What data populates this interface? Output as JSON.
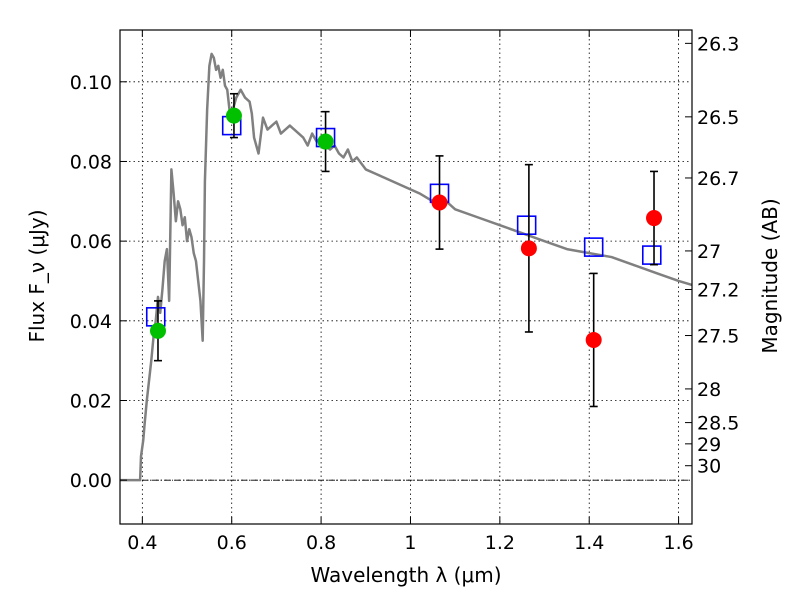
{
  "chart_data": {
    "type": "scatter",
    "xlabel": "Wavelength λ (μm)",
    "ylabel": "Flux F_ν (μJy)",
    "ylabel_right": "Magnitude (AB)",
    "xlim": [
      0.35,
      1.63
    ],
    "ylim": [
      -0.011,
      0.113
    ],
    "x_ticks": [
      0.4,
      0.6,
      0.8,
      1.0,
      1.2,
      1.4,
      1.6
    ],
    "x_tick_labels": [
      "0.4",
      "0.6",
      "0.8",
      "1",
      "1.2",
      "1.4",
      "1.6"
    ],
    "y_ticks": [
      0.0,
      0.02,
      0.04,
      0.06,
      0.08,
      0.1
    ],
    "y_tick_labels": [
      "0.00",
      "0.02",
      "0.04",
      "0.06",
      "0.08",
      "0.10"
    ],
    "right_ticks": [
      26.3,
      26.5,
      26.7,
      27,
      27.2,
      27.5,
      28,
      28.5,
      29,
      30
    ],
    "right_tick_labels": [
      "26.3",
      "26.5",
      "26.7",
      "27",
      "27.2",
      "27.5",
      "28",
      "28.5",
      "29",
      "30"
    ],
    "grid": true,
    "series": [
      {
        "kind": "line",
        "color": "#808080",
        "x": [
          0.35,
          0.395,
          0.397,
          0.402,
          0.405,
          0.41,
          0.415,
          0.42,
          0.425,
          0.43,
          0.435,
          0.44,
          0.445,
          0.45,
          0.455,
          0.46,
          0.465,
          0.47,
          0.475,
          0.48,
          0.485,
          0.49,
          0.495,
          0.5,
          0.505,
          0.51,
          0.515,
          0.52,
          0.525,
          0.53,
          0.535,
          0.538,
          0.54,
          0.545,
          0.55,
          0.555,
          0.56,
          0.565,
          0.57,
          0.575,
          0.58,
          0.585,
          0.59,
          0.595,
          0.6,
          0.61,
          0.62,
          0.63,
          0.64,
          0.645,
          0.65,
          0.66,
          0.67,
          0.68,
          0.69,
          0.7,
          0.71,
          0.72,
          0.73,
          0.74,
          0.75,
          0.76,
          0.77,
          0.78,
          0.79,
          0.8,
          0.81,
          0.82,
          0.83,
          0.84,
          0.85,
          0.86,
          0.87,
          0.88,
          0.9,
          0.92,
          0.94,
          0.96,
          0.98,
          1.0,
          1.02,
          1.05,
          1.08,
          1.1,
          1.15,
          1.2,
          1.25,
          1.3,
          1.35,
          1.4,
          1.45,
          1.5,
          1.55,
          1.6,
          1.63
        ],
        "y": [
          0.0,
          0.0,
          0.006,
          0.01,
          0.014,
          0.02,
          0.025,
          0.03,
          0.036,
          0.04,
          0.046,
          0.042,
          0.048,
          0.055,
          0.058,
          0.045,
          0.078,
          0.072,
          0.065,
          0.07,
          0.068,
          0.064,
          0.066,
          0.06,
          0.063,
          0.061,
          0.057,
          0.055,
          0.05,
          0.045,
          0.035,
          0.055,
          0.075,
          0.093,
          0.104,
          0.107,
          0.106,
          0.103,
          0.104,
          0.101,
          0.103,
          0.099,
          0.098,
          0.093,
          0.092,
          0.096,
          0.098,
          0.096,
          0.095,
          0.092,
          0.086,
          0.082,
          0.091,
          0.088,
          0.089,
          0.09,
          0.087,
          0.088,
          0.089,
          0.088,
          0.087,
          0.086,
          0.084,
          0.087,
          0.085,
          0.086,
          0.084,
          0.083,
          0.084,
          0.082,
          0.081,
          0.083,
          0.08,
          0.081,
          0.078,
          0.077,
          0.076,
          0.075,
          0.074,
          0.073,
          0.072,
          0.07,
          0.07,
          0.068,
          0.066,
          0.064,
          0.062,
          0.06,
          0.058,
          0.057,
          0.056,
          0.054,
          0.052,
          0.05,
          0.049
        ]
      },
      {
        "kind": "open-square",
        "color": "#0000ff",
        "x": [
          0.43,
          0.6,
          0.81,
          1.065,
          1.26,
          1.41,
          1.54
        ],
        "y": [
          0.041,
          0.089,
          0.086,
          0.072,
          0.064,
          0.0585,
          0.0565
        ]
      },
      {
        "kind": "filled-circle",
        "color": "#00c000",
        "x": [
          0.435,
          0.605,
          0.81
        ],
        "y": [
          0.0375,
          0.0915,
          0.085
        ],
        "yerr_low": [
          0.0075,
          0.0055,
          0.0075
        ],
        "yerr_high": [
          0.0075,
          0.0055,
          0.0075
        ]
      },
      {
        "kind": "filled-circle",
        "color": "#ff0000",
        "x": [
          1.065,
          1.265,
          1.41,
          1.545
        ],
        "y": [
          0.0697,
          0.0582,
          0.0352,
          0.0658
        ],
        "yerr_low": [
          0.0117,
          0.021,
          0.0167,
          0.0117
        ],
        "yerr_high": [
          0.0117,
          0.021,
          0.0167,
          0.0117
        ]
      }
    ]
  }
}
